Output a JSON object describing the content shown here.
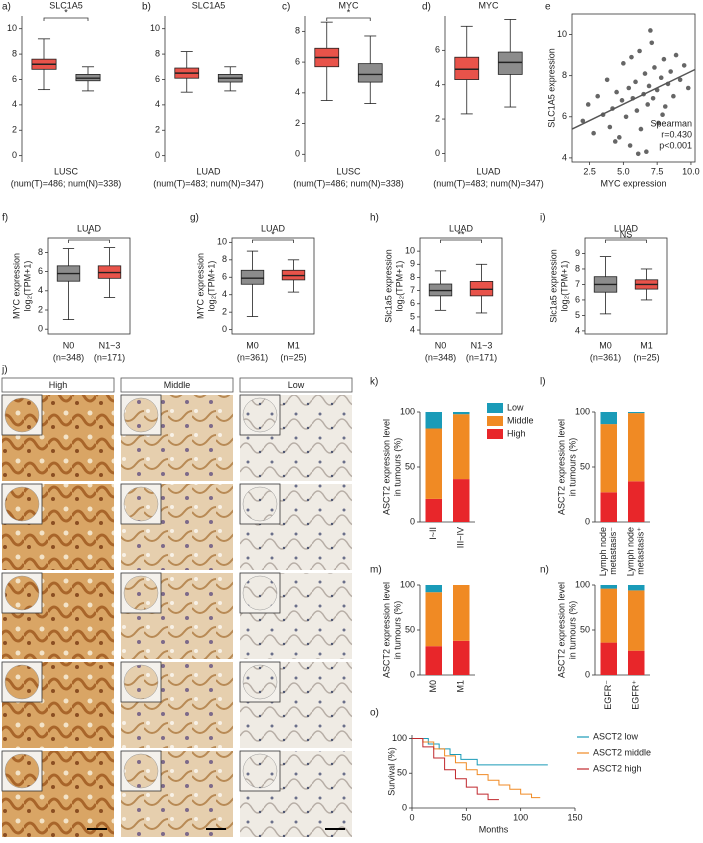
{
  "chart_data": [
    {
      "type": "box",
      "panel_label": "a)",
      "title": "SLC1A5",
      "xlabel": "LUSC",
      "sublabel": "(num(T)=486; num(N)=338)",
      "significance": "*",
      "ylim": [
        -0.5,
        11
      ],
      "yticks": [
        0,
        2,
        4,
        6,
        8,
        10
      ],
      "boxes": [
        {
          "color": "#e8534a",
          "stats": [
            5.2,
            6.8,
            7.2,
            7.6,
            9.2
          ]
        },
        {
          "color": "#8c8c8c",
          "stats": [
            5.1,
            5.9,
            6.1,
            6.4,
            7.0
          ]
        }
      ]
    },
    {
      "type": "box",
      "panel_label": "b)",
      "title": "SLC1A5",
      "xlabel": "LUAD",
      "sublabel": "(num(T)=483; num(N)=347)",
      "ylim": [
        -0.5,
        11
      ],
      "yticks": [
        0,
        2,
        4,
        6,
        8,
        10
      ],
      "boxes": [
        {
          "color": "#e8534a",
          "stats": [
            5.0,
            6.1,
            6.5,
            6.9,
            8.2
          ]
        },
        {
          "color": "#8c8c8c",
          "stats": [
            5.1,
            5.8,
            6.1,
            6.4,
            7.0
          ]
        }
      ]
    },
    {
      "type": "box",
      "panel_label": "c)",
      "title": "MYC",
      "xlabel": "LUSC",
      "sublabel": "(num(T)=486; num(N)=338)",
      "significance": "*",
      "ylim": [
        -0.5,
        9
      ],
      "yticks": [
        0,
        2,
        4,
        6,
        8
      ],
      "boxes": [
        {
          "color": "#e8534a",
          "stats": [
            3.5,
            5.7,
            6.3,
            6.9,
            8.6
          ]
        },
        {
          "color": "#8c8c8c",
          "stats": [
            3.3,
            4.7,
            5.2,
            5.9,
            7.7
          ]
        }
      ]
    },
    {
      "type": "box",
      "panel_label": "d)",
      "title": "MYC",
      "xlabel": "LUAD",
      "sublabel": "(num(T)=483; num(N)=347)",
      "ylim": [
        -0.5,
        8
      ],
      "yticks": [
        0,
        2,
        4,
        6
      ],
      "boxes": [
        {
          "color": "#e8534a",
          "stats": [
            2.3,
            4.3,
            4.9,
            5.6,
            7.4
          ]
        },
        {
          "color": "#8c8c8c",
          "stats": [
            2.7,
            4.6,
            5.3,
            5.9,
            7.8
          ]
        }
      ]
    },
    {
      "type": "scatter",
      "panel_label": "e",
      "xlabel": "MYC expression",
      "ylabel": "SLC1A5 expression",
      "xlim": [
        1.2,
        10.3
      ],
      "ylim": [
        3.8,
        11
      ],
      "xticks": [
        {
          "value": 2.5,
          "label": "2.5"
        },
        {
          "value": 5,
          "label": "5.0"
        },
        {
          "value": 7.5,
          "label": "7.5"
        },
        {
          "value": 10,
          "label": "10.0"
        }
      ],
      "yticks": [
        4,
        6,
        8,
        10
      ],
      "annotations": [
        "Spearman",
        "r=0.430",
        "p<0.001"
      ],
      "color": "#333333",
      "x": [
        2.0,
        2.4,
        2.8,
        3.1,
        3.5,
        3.8,
        4.0,
        4.2,
        4.5,
        4.7,
        4.9,
        5.0,
        5.2,
        5.4,
        5.5,
        5.7,
        5.9,
        6.0,
        6.2,
        6.3,
        6.5,
        6.6,
        6.8,
        6.9,
        7.0,
        7.2,
        7.3,
        7.5,
        7.6,
        7.8,
        8.0,
        8.1,
        8.3,
        8.5,
        8.7,
        8.9,
        9.2,
        9.5,
        9.8,
        6.1,
        5.6,
        7.1,
        4.4,
        6.7,
        7.9
      ],
      "values": [
        5.8,
        6.6,
        5.2,
        7.0,
        6.1,
        7.8,
        5.5,
        6.4,
        7.2,
        5.0,
        6.8,
        8.6,
        6.0,
        7.4,
        4.6,
        6.9,
        7.7,
        6.3,
        9.2,
        5.4,
        7.1,
        8.1,
        6.6,
        7.5,
        10.2,
        6.9,
        8.4,
        7.3,
        5.7,
        7.9,
        8.8,
        6.5,
        7.6,
        8.2,
        7.0,
        9.0,
        7.8,
        8.5,
        7.4,
        4.2,
        8.9,
        9.6,
        4.8,
        4.3,
        6.1
      ],
      "fit": {
        "x": [
          1.2,
          10.3
        ],
        "y": [
          5.4,
          8.3
        ]
      }
    },
    {
      "type": "box",
      "panel_label": "f)",
      "title": "LUAD",
      "ylabel": [
        "MYC expression",
        "log₂(TPM+1)"
      ],
      "significance": "*",
      "ylim": [
        -0.5,
        9.5
      ],
      "yticks": [
        0,
        2,
        4,
        6,
        8
      ],
      "categories": [
        [
          "N0",
          "(n=348)"
        ],
        [
          "N1~3",
          "(n=171)"
        ]
      ],
      "boxes": [
        {
          "color": "#8c8c8c",
          "stats": [
            1.0,
            5.0,
            5.8,
            6.6,
            8.4
          ]
        },
        {
          "color": "#e8534a",
          "stats": [
            3.3,
            5.3,
            5.9,
            6.6,
            8.5
          ]
        }
      ]
    },
    {
      "type": "box",
      "panel_label": "g)",
      "title": "LUAD",
      "ylabel": [
        "MYC expression",
        "log₂(TPM+1)"
      ],
      "significance": "*",
      "ylim": [
        -0.5,
        10.5
      ],
      "yticks": [
        0,
        2,
        4,
        6,
        8,
        10
      ],
      "categories": [
        [
          "M0",
          "(n=361)"
        ],
        [
          "M1",
          "(n=25)"
        ]
      ],
      "boxes": [
        {
          "color": "#8c8c8c",
          "stats": [
            1.5,
            5.2,
            5.9,
            6.8,
            9.0
          ]
        },
        {
          "color": "#e8534a",
          "stats": [
            4.3,
            5.7,
            6.2,
            6.8,
            8.0
          ]
        }
      ]
    },
    {
      "type": "box",
      "panel_label": "h)",
      "title": "LUAD",
      "ylabel": [
        "Slc1a5 expression",
        "log₂(TPM+1)"
      ],
      "significance": "**",
      "ylim": [
        3.7,
        11
      ],
      "yticks": [
        4,
        5,
        6,
        7,
        8,
        9,
        10
      ],
      "categories": [
        [
          "N0",
          "(n=348)"
        ],
        [
          "N1~3",
          "(n=171)"
        ]
      ],
      "boxes": [
        {
          "color": "#8c8c8c",
          "stats": [
            5.5,
            6.6,
            7.0,
            7.5,
            8.5
          ]
        },
        {
          "color": "#e8534a",
          "stats": [
            5.3,
            6.6,
            7.1,
            7.7,
            9.0
          ]
        }
      ]
    },
    {
      "type": "box",
      "panel_label": "i)",
      "title": "LUAD",
      "ylabel": [
        "Slc1a5 expression",
        "log₂(TPM+1)"
      ],
      "significance": "NS",
      "ylim": [
        3.8,
        10
      ],
      "yticks": [
        4,
        5,
        6,
        7,
        8,
        9
      ],
      "categories": [
        [
          "M0",
          "(n=361)"
        ],
        [
          "M1",
          "(n=25)"
        ]
      ],
      "boxes": [
        {
          "color": "#8c8c8c",
          "stats": [
            5.1,
            6.5,
            7.0,
            7.5,
            8.8
          ]
        },
        {
          "color": "#e8534a",
          "stats": [
            6.0,
            6.7,
            7.0,
            7.3,
            8.0
          ]
        }
      ]
    },
    {
      "type": "stacked_bar",
      "panel_label": "k)",
      "ylabel": [
        "ASCT2 expression level",
        "in tumours (%)"
      ],
      "ylim": [
        0,
        100
      ],
      "yticks": [
        0,
        50,
        100
      ],
      "legend": "right",
      "categories": [
        [
          "I~II"
        ],
        [
          "III~IV"
        ]
      ],
      "series": [
        {
          "name": "Low",
          "color": "#1a9bb8",
          "values": [
            15,
            2
          ]
        },
        {
          "name": "Middle",
          "color": "#f08a24",
          "values": [
            64,
            59
          ]
        },
        {
          "name": "High",
          "color": "#e8262a",
          "values": [
            21,
            39
          ]
        }
      ]
    },
    {
      "type": "stacked_bar",
      "panel_label": "l)",
      "ylabel": [
        "ASCT2 expression level",
        "in tumours (%)"
      ],
      "ylim": [
        0,
        100
      ],
      "yticks": [
        0,
        50,
        100
      ],
      "categories": [
        [
          "Lymph node",
          "metastasis⁻"
        ],
        [
          "Lymph node",
          "metastasis⁺"
        ]
      ],
      "series": [
        {
          "color": "#1a9bb8",
          "values": [
            11,
            1
          ]
        },
        {
          "color": "#f08a24",
          "values": [
            62,
            62
          ]
        },
        {
          "color": "#e8262a",
          "values": [
            27,
            37
          ]
        }
      ]
    },
    {
      "type": "stacked_bar",
      "panel_label": "m)",
      "ylabel": [
        "ASCT2 expression level",
        "in tumours (%)"
      ],
      "ylim": [
        0,
        100
      ],
      "yticks": [
        0,
        50,
        100
      ],
      "categories": [
        [
          "M0"
        ],
        [
          "M1"
        ]
      ],
      "series": [
        {
          "color": "#1a9bb8",
          "values": [
            8,
            0
          ]
        },
        {
          "color": "#f08a24",
          "values": [
            60,
            62
          ]
        },
        {
          "color": "#e8262a",
          "values": [
            32,
            38
          ]
        }
      ]
    },
    {
      "type": "stacked_bar",
      "panel_label": "n)",
      "ylabel": [
        "ASCT2 expression level",
        "in tumours (%)"
      ],
      "ylim": [
        0,
        100
      ],
      "yticks": [
        0,
        50,
        100
      ],
      "categories": [
        [
          "EGFR⁻"
        ],
        [
          "EGFR⁺"
        ]
      ],
      "series": [
        {
          "color": "#1a9bb8",
          "values": [
            4,
            6
          ]
        },
        {
          "color": "#f08a24",
          "values": [
            60,
            67
          ]
        },
        {
          "color": "#e8262a",
          "values": [
            36,
            27
          ]
        }
      ]
    },
    {
      "type": "line",
      "panel_label": "o)",
      "xlabel": "Months",
      "ylabel": "Survival (%)",
      "xlim": [
        0,
        150
      ],
      "ylim": [
        0,
        105
      ],
      "xticks": [
        0,
        50,
        100,
        150
      ],
      "yticks": [
        0,
        50,
        100
      ],
      "legend": "right",
      "series": [
        {
          "name": "ASCT2 low",
          "color": "#1a9bb8",
          "x": [
            0,
            15,
            15,
            25,
            25,
            35,
            35,
            45,
            45,
            60,
            60,
            125
          ],
          "values": [
            100,
            100,
            92,
            92,
            85,
            85,
            77,
            77,
            70,
            70,
            62,
            62
          ]
        },
        {
          "name": "ASCT2 middle",
          "color": "#f08a24",
          "x": [
            0,
            10,
            10,
            20,
            20,
            30,
            30,
            40,
            40,
            50,
            50,
            60,
            60,
            70,
            70,
            80,
            80,
            90,
            90,
            100,
            100,
            110,
            110,
            118
          ],
          "values": [
            100,
            100,
            95,
            95,
            85,
            85,
            75,
            75,
            65,
            65,
            55,
            55,
            48,
            48,
            40,
            40,
            33,
            33,
            27,
            27,
            20,
            20,
            15,
            15
          ]
        },
        {
          "name": "ASCT2 high",
          "color": "#c0282d",
          "x": [
            0,
            10,
            10,
            20,
            20,
            30,
            30,
            40,
            40,
            50,
            50,
            60,
            60,
            70,
            70,
            80
          ],
          "values": [
            100,
            100,
            88,
            88,
            72,
            72,
            55,
            55,
            42,
            42,
            30,
            30,
            20,
            20,
            12,
            12
          ]
        }
      ]
    }
  ],
  "ihc": {
    "panel_label": "j)",
    "columns": [
      "High",
      "Middle",
      "Low"
    ]
  }
}
